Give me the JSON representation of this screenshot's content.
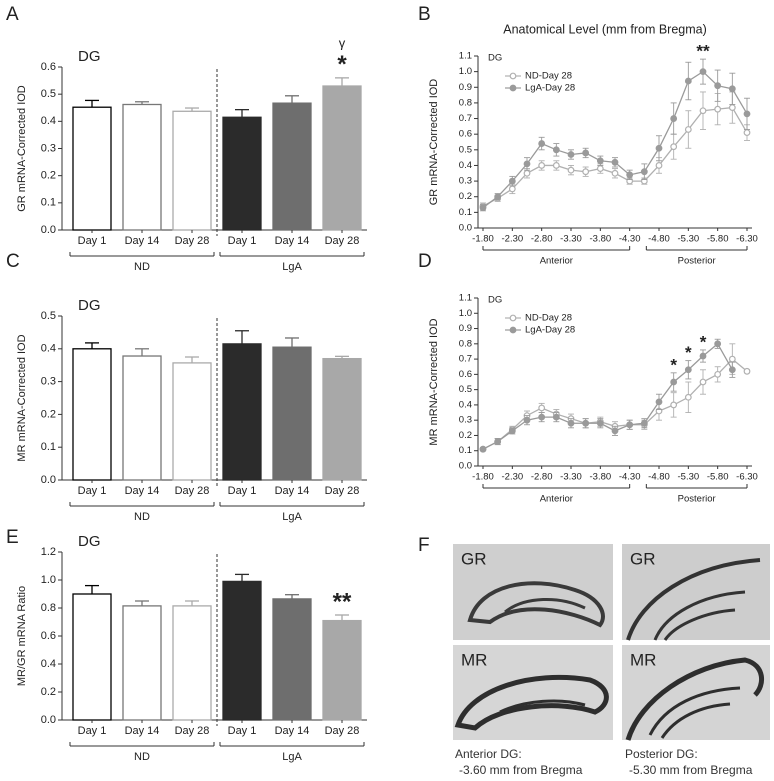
{
  "chart_data": [
    {
      "type": "bar",
      "panel": "A",
      "label": "DG",
      "ylabel": "GR mRNA-Corrected IOD",
      "categories": [
        "Day 1",
        "Day 14",
        "Day 28",
        "Day 1",
        "Day 14",
        "Day 28"
      ],
      "values": [
        0.452,
        0.462,
        0.437,
        0.415,
        0.467,
        0.53
      ],
      "errors": [
        0.025,
        0.01,
        0.012,
        0.028,
        0.027,
        0.03
      ],
      "colors": [
        "#ffffff",
        "#ffffff",
        "#ffffff",
        "#2b2b2b",
        "#6e6e6e",
        "#a8a8a8"
      ],
      "edge_colors": [
        "#000000",
        "#777777",
        "#aaaaaa",
        "#2b2b2b",
        "#6e6e6e",
        "#a8a8a8"
      ],
      "group_labels": [
        "ND",
        "LgA"
      ],
      "annotations": [
        null,
        null,
        null,
        null,
        null,
        [
          "*",
          "γ"
        ]
      ],
      "ylim": [
        0,
        0.6
      ],
      "yticks": [
        {
          "value": 0,
          "label": "0.0"
        },
        0.1,
        0.2,
        0.3,
        0.4,
        0.5,
        0.6
      ]
    },
    {
      "type": "line",
      "panel": "B",
      "title": "Anatomical Level (mm from Bregma)",
      "label": "DG",
      "ylabel": "GR mRNA-Corrected IOD",
      "x": [
        -1.8,
        -2.05,
        -2.3,
        -2.55,
        -2.8,
        -3.05,
        -3.3,
        -3.55,
        -3.8,
        -4.05,
        -4.3,
        -4.55,
        -4.8,
        -5.05,
        -5.3,
        -5.55,
        -5.8,
        -6.05,
        -6.3
      ],
      "series": [
        {
          "name": "ND-Day 28",
          "color": "#b0b0b0",
          "filled": false,
          "values": [
            0.14,
            0.19,
            0.25,
            0.35,
            0.4,
            0.4,
            0.37,
            0.36,
            0.38,
            0.35,
            0.3,
            0.3,
            0.4,
            0.52,
            0.63,
            0.75,
            0.76,
            0.77,
            0.61
          ],
          "errors": [
            0.02,
            0.02,
            0.03,
            0.03,
            0.03,
            0.03,
            0.03,
            0.03,
            0.03,
            0.03,
            0.02,
            0.02,
            0.05,
            0.08,
            0.12,
            0.12,
            0.1,
            0.1,
            0.05
          ]
        },
        {
          "name": "LgA-Day 28",
          "color": "#9a9a9a",
          "filled": true,
          "values": [
            0.13,
            0.2,
            0.3,
            0.41,
            0.54,
            0.5,
            0.47,
            0.48,
            0.43,
            0.42,
            0.34,
            0.36,
            0.51,
            0.7,
            0.94,
            1.0,
            0.91,
            0.89,
            0.73
          ],
          "errors": [
            0.02,
            0.02,
            0.03,
            0.04,
            0.04,
            0.04,
            0.03,
            0.03,
            0.03,
            0.03,
            0.03,
            0.05,
            0.08,
            0.1,
            0.12,
            0.08,
            0.1,
            0.1,
            0.1
          ]
        }
      ],
      "annotations": [
        null,
        null,
        null,
        null,
        null,
        null,
        null,
        null,
        null,
        null,
        null,
        null,
        null,
        null,
        null,
        "**",
        null,
        null,
        null
      ],
      "regions": [
        "Anterior",
        "Posterior"
      ],
      "legend": "upper left",
      "xlim": [
        -1.8,
        -6.3
      ],
      "xticks": [
        {
          "value": -1.8,
          "label": "-1.80"
        },
        {
          "value": -2.3,
          "label": "-2.30"
        },
        {
          "value": -2.8,
          "label": "-2.80"
        },
        {
          "value": -3.3,
          "label": "-3.30"
        },
        {
          "value": -3.8,
          "label": "-3.80"
        },
        {
          "value": -4.3,
          "label": "-4.30"
        },
        {
          "value": -4.8,
          "label": "-4.80"
        },
        {
          "value": -5.3,
          "label": "-5.30"
        },
        {
          "value": -5.8,
          "label": "-5.80"
        },
        {
          "value": -6.3,
          "label": "-6.30"
        }
      ],
      "ylim": [
        0,
        1.1
      ],
      "yticks": [
        {
          "value": 0,
          "label": "0.0"
        },
        0.1,
        0.2,
        0.3,
        0.4,
        0.5,
        0.6,
        0.7,
        0.8,
        0.9,
        {
          "value": 1,
          "label": "1.0"
        },
        1.1
      ]
    },
    {
      "type": "bar",
      "panel": "C",
      "label": "DG",
      "ylabel": "MR mRNA-Corrected IOD",
      "categories": [
        "Day 1",
        "Day 14",
        "Day 28",
        "Day 1",
        "Day 14",
        "Day 28"
      ],
      "values": [
        0.4,
        0.378,
        0.357,
        0.415,
        0.405,
        0.37
      ],
      "errors": [
        0.018,
        0.022,
        0.018,
        0.04,
        0.028,
        0.007
      ],
      "colors": [
        "#ffffff",
        "#ffffff",
        "#ffffff",
        "#2b2b2b",
        "#6e6e6e",
        "#a8a8a8"
      ],
      "edge_colors": [
        "#000000",
        "#777777",
        "#aaaaaa",
        "#2b2b2b",
        "#6e6e6e",
        "#a8a8a8"
      ],
      "group_labels": [
        "ND",
        "LgA"
      ],
      "ylim": [
        0,
        0.5
      ],
      "yticks": [
        {
          "value": 0,
          "label": "0.0"
        },
        0.1,
        0.2,
        0.3,
        0.4,
        0.5
      ]
    },
    {
      "type": "line",
      "panel": "D",
      "label": "DG",
      "ylabel": "MR mRNA-Corrected IOD",
      "x": [
        -1.8,
        -2.05,
        -2.3,
        -2.55,
        -2.8,
        -3.05,
        -3.3,
        -3.55,
        -3.8,
        -4.05,
        -4.3,
        -4.55,
        -4.8,
        -5.05,
        -5.3,
        -5.55,
        -5.8,
        -6.05,
        -6.3
      ],
      "series": [
        {
          "name": "ND-Day 28",
          "color": "#b0b0b0",
          "filled": false,
          "values": [
            0.11,
            0.16,
            0.24,
            0.33,
            0.38,
            0.34,
            0.31,
            0.28,
            0.29,
            0.26,
            0.27,
            0.27,
            0.36,
            0.4,
            0.45,
            0.55,
            0.6,
            0.7,
            0.62
          ],
          "errors": [
            0.01,
            0.02,
            0.02,
            0.03,
            0.03,
            0.03,
            0.03,
            0.03,
            0.03,
            0.03,
            0.03,
            0.03,
            0.06,
            0.08,
            0.1,
            0.08,
            0.05,
            0.1,
            0.01
          ]
        },
        {
          "name": "LgA-Day 28",
          "color": "#9a9a9a",
          "filled": true,
          "values": [
            0.11,
            0.16,
            0.23,
            0.3,
            0.32,
            0.32,
            0.28,
            0.28,
            0.28,
            0.23,
            0.27,
            0.28,
            0.42,
            0.55,
            0.63,
            0.72,
            0.8,
            0.63,
            null
          ],
          "errors": [
            0.01,
            0.02,
            0.02,
            0.03,
            0.03,
            0.03,
            0.03,
            0.03,
            0.03,
            0.03,
            0.03,
            0.03,
            0.05,
            0.06,
            0.06,
            0.04,
            0.03,
            0.05,
            null
          ]
        }
      ],
      "annotations": [
        null,
        null,
        null,
        null,
        null,
        null,
        null,
        null,
        null,
        null,
        null,
        null,
        null,
        "*",
        "*",
        "*",
        null,
        null,
        null
      ],
      "regions": [
        "Anterior",
        "Posterior"
      ],
      "legend": "upper left",
      "xlim": [
        -1.8,
        -6.3
      ],
      "xticks": [
        {
          "value": -1.8,
          "label": "-1.80"
        },
        {
          "value": -2.3,
          "label": "-2.30"
        },
        {
          "value": -2.8,
          "label": "-2.80"
        },
        {
          "value": -3.3,
          "label": "-3.30"
        },
        {
          "value": -3.8,
          "label": "-3.80"
        },
        {
          "value": -4.3,
          "label": "-4.30"
        },
        {
          "value": -4.8,
          "label": "-4.80"
        },
        {
          "value": -5.3,
          "label": "-5.30"
        },
        {
          "value": -5.8,
          "label": "-5.80"
        },
        {
          "value": -6.3,
          "label": "-6.30"
        }
      ],
      "ylim": [
        0,
        1.1
      ],
      "yticks": [
        {
          "value": 0,
          "label": "0.0"
        },
        0.1,
        0.2,
        0.3,
        0.4,
        0.5,
        0.6,
        0.7,
        0.8,
        0.9,
        {
          "value": 1,
          "label": "1.0"
        },
        1.1
      ]
    },
    {
      "type": "bar",
      "panel": "E",
      "label": "DG",
      "ylabel": "MR/GR mRNA Ratio",
      "categories": [
        "Day 1",
        "Day 14",
        "Day 28",
        "Day 1",
        "Day 14",
        "Day 28"
      ],
      "values": [
        0.9,
        0.815,
        0.815,
        0.99,
        0.865,
        0.71
      ],
      "errors": [
        0.06,
        0.035,
        0.035,
        0.05,
        0.03,
        0.04
      ],
      "colors": [
        "#ffffff",
        "#ffffff",
        "#ffffff",
        "#2b2b2b",
        "#6e6e6e",
        "#a8a8a8"
      ],
      "edge_colors": [
        "#000000",
        "#777777",
        "#aaaaaa",
        "#2b2b2b",
        "#6e6e6e",
        "#a8a8a8"
      ],
      "group_labels": [
        "ND",
        "LgA"
      ],
      "annotations": [
        null,
        null,
        null,
        null,
        null,
        [
          "**"
        ]
      ],
      "ylim": [
        0,
        1.2
      ],
      "yticks": [
        {
          "value": 0,
          "label": "0.0"
        },
        0.2,
        0.4,
        0.6,
        0.8,
        {
          "value": 1,
          "label": "1.0"
        },
        1.2
      ]
    }
  ],
  "panel_f": {
    "panel": "F",
    "tiles": [
      {
        "label": "GR"
      },
      {
        "label": "GR"
      },
      {
        "label": "MR"
      },
      {
        "label": "MR"
      }
    ],
    "captions": [
      [
        "Anterior DG:",
        "-3.60 mm from Bregma"
      ],
      [
        "Posterior DG:",
        "-5.30 mm from Bregma"
      ]
    ]
  }
}
